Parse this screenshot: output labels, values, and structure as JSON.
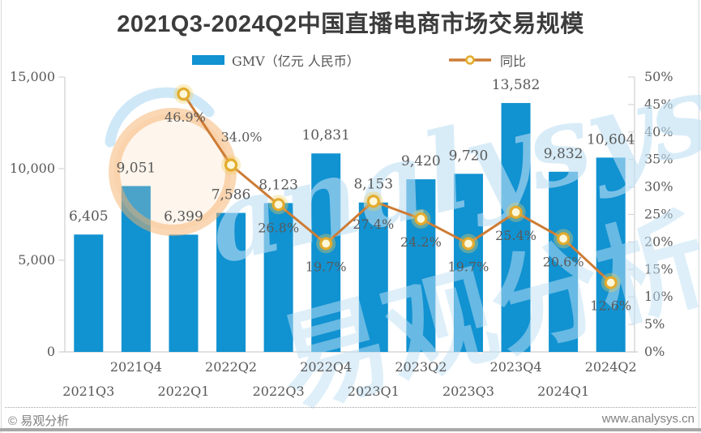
{
  "title": "2021Q3-2024Q2中国直播电商市场交易规模",
  "legend": {
    "gmv_label": "GMV（亿元 人民币）",
    "yoy_label": "同比"
  },
  "footer": {
    "copyright": "© 易观分析",
    "website": "www.analysys.cn"
  },
  "watermark": {
    "latin": "analysys",
    "cjk": "易观分析"
  },
  "colors": {
    "bar": "#1192d1",
    "line": "#cd7c35",
    "marker_ring": "#e3ac2e",
    "marker_fill": "#fdf8da",
    "marker_glow": "rgba(240,205,90,0.35)",
    "axis": "#d6d6d6",
    "label_text": "#595959",
    "title_text": "#3c3c3c",
    "watermark_blue": "#bfe0f5",
    "watermark_orange": "rgba(246,178,107,0.5)",
    "watermark_orange_fill": "rgba(250,215,180,0.25)"
  },
  "chart_data": {
    "type": "bar+line",
    "categories": [
      "2021Q3",
      "2021Q4",
      "2022Q1",
      "2022Q2",
      "2022Q3",
      "2022Q4",
      "2023Q1",
      "2023Q2",
      "2023Q3",
      "2023Q4",
      "2024Q1",
      "2024Q2"
    ],
    "series": [
      {
        "name": "GMV（亿元 人民币）",
        "type": "bar",
        "values": [
          6405,
          9051,
          6399,
          7586,
          8123,
          10831,
          8153,
          9420,
          9720,
          13582,
          9832,
          10604
        ],
        "labels": [
          "6,405",
          "9,051",
          "6,399",
          "7,586",
          "8,123",
          "10,831",
          "8,153",
          "9,420",
          "9,720",
          "13,582",
          "9,832",
          "10,604"
        ]
      },
      {
        "name": "同比",
        "type": "line",
        "values": [
          null,
          null,
          46.9,
          34.0,
          26.8,
          19.7,
          27.4,
          24.2,
          19.7,
          25.4,
          20.6,
          12.6
        ],
        "labels": [
          null,
          null,
          "46.9%",
          "34.0%",
          "26.8%",
          "19.7%",
          "27.4%",
          "24.2%",
          "19.7%",
          "25.4%",
          "20.6%",
          "12.6%"
        ]
      }
    ],
    "left_axis": {
      "min": 0,
      "max": 15000,
      "tick_labels": [
        "0",
        "5,000",
        "10,000",
        "15,000"
      ]
    },
    "right_axis": {
      "min": 0,
      "max": 50,
      "tick_labels": [
        "0%",
        "5%",
        "10%",
        "15%",
        "20%",
        "25%",
        "30%",
        "35%",
        "40%",
        "45%",
        "50%"
      ]
    },
    "grid": false,
    "legend_position": "top"
  }
}
